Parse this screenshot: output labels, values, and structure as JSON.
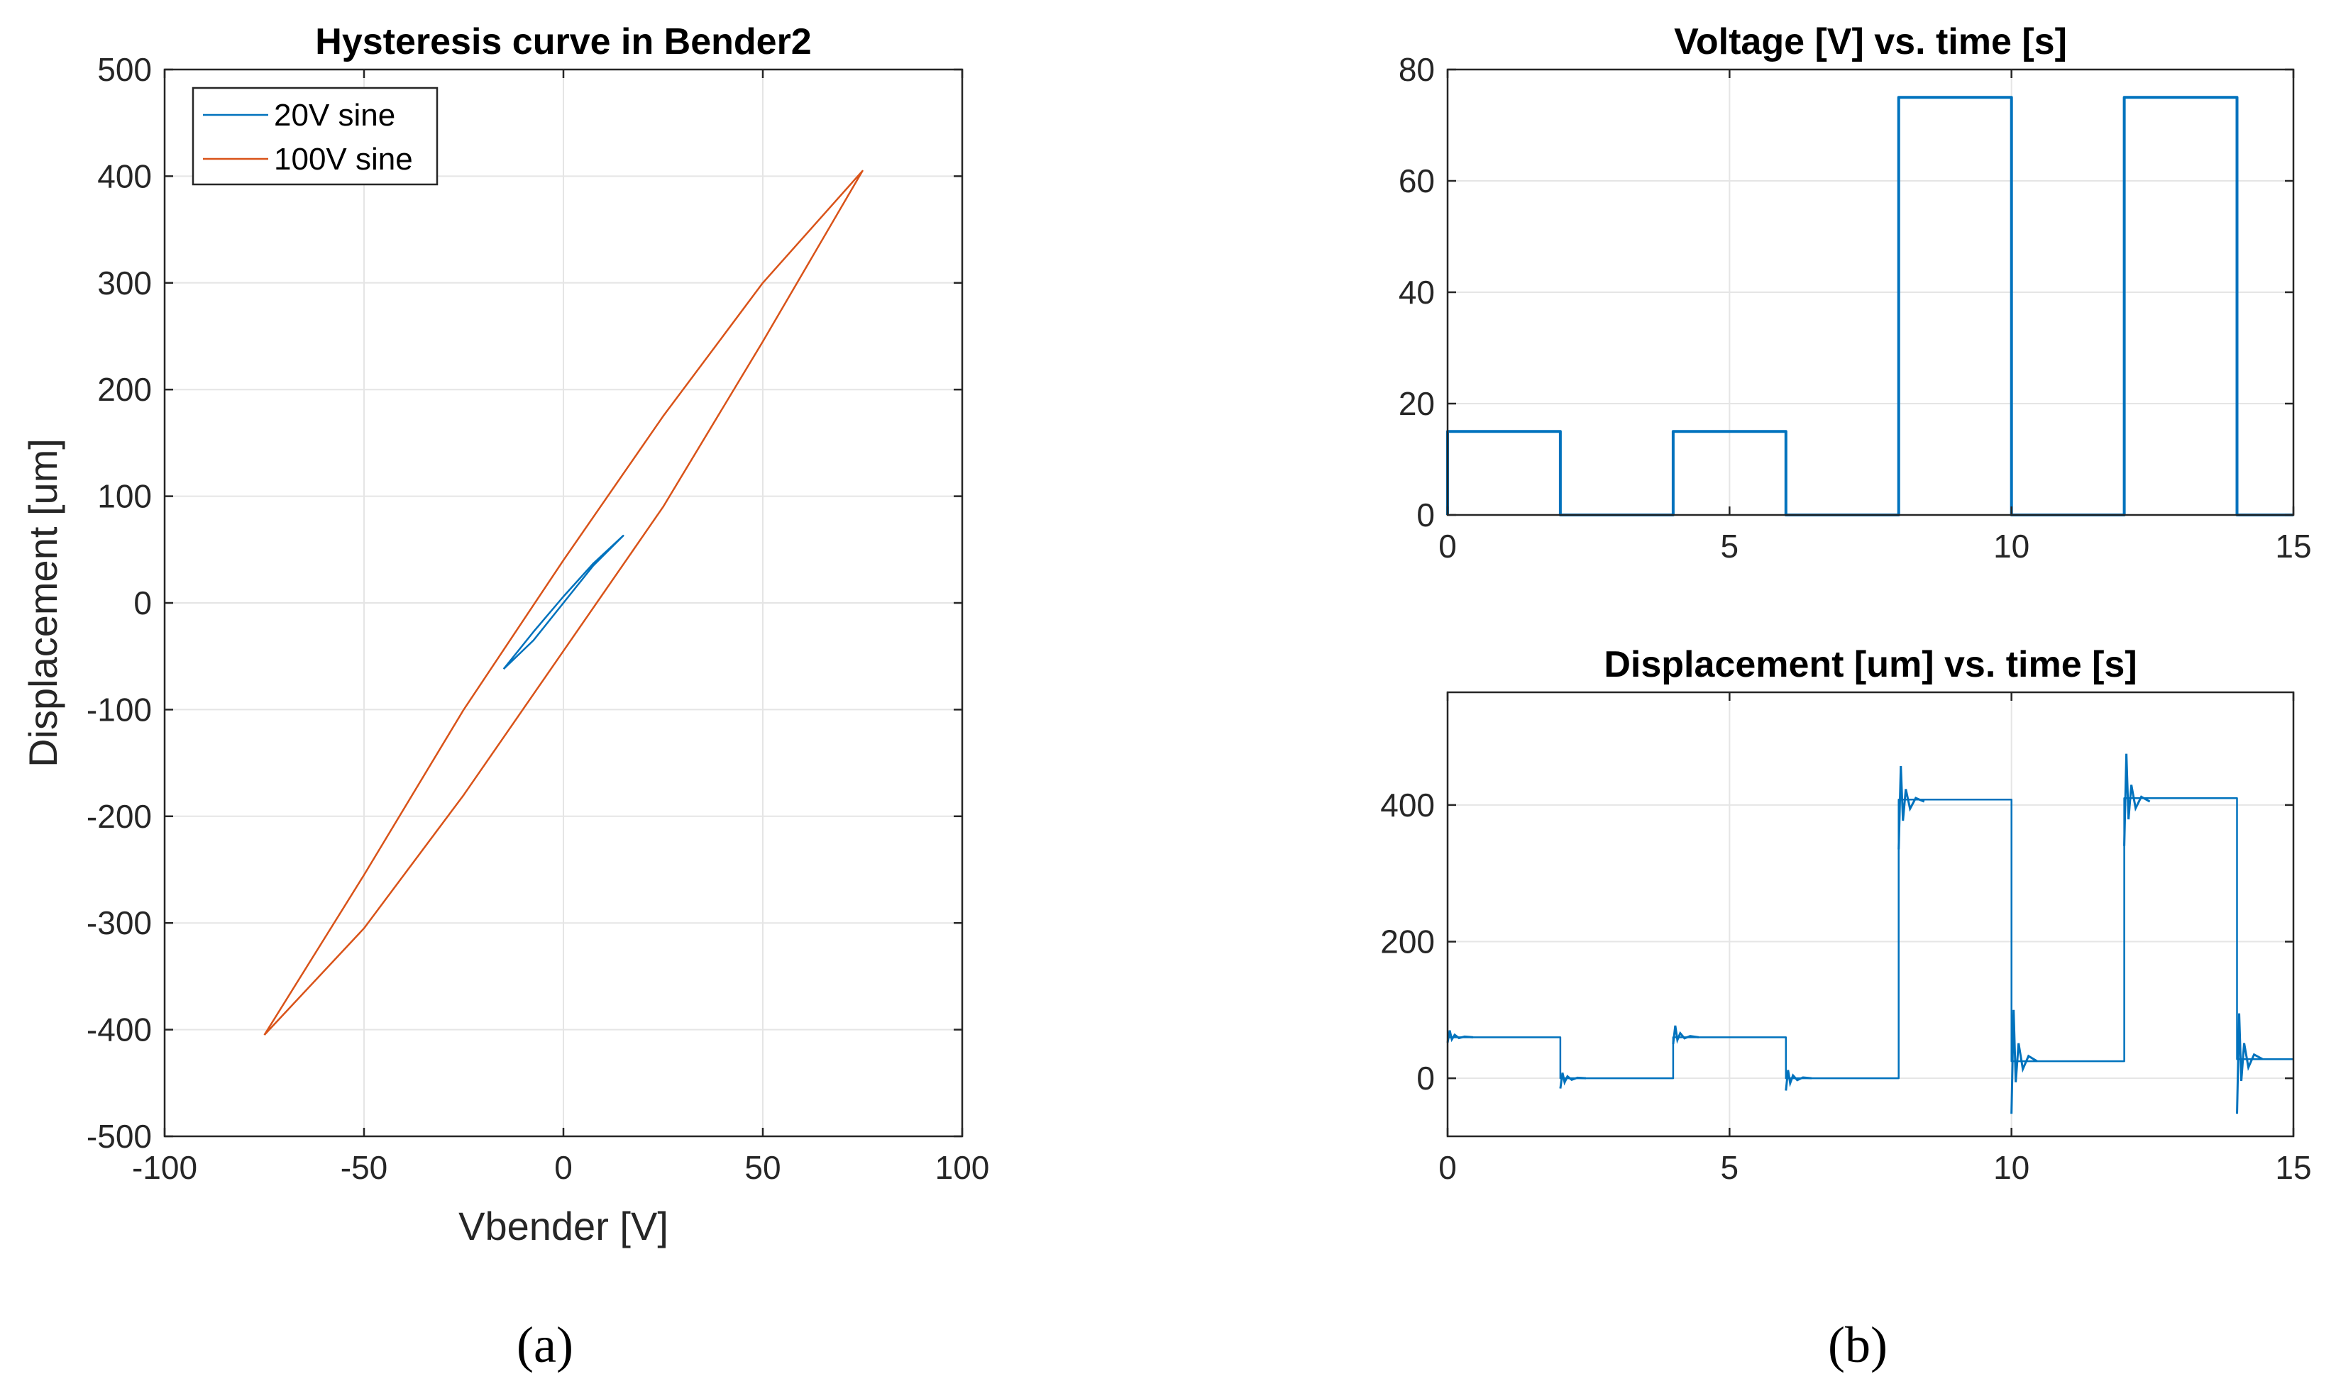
{
  "colors": {
    "blue": "#0072BD",
    "orange": "#D95319",
    "axis": "#262626",
    "grid": "#e5e5e5"
  },
  "panel_labels": {
    "a": "(a)",
    "b": "(b)"
  },
  "chart_data": [
    {
      "id": "hysteresis",
      "type": "line",
      "title": "Hysteresis curve in Bender2",
      "xlabel": "Vbender [V]",
      "ylabel": "Displacement [um]",
      "xlim": [
        -100,
        100
      ],
      "ylim": [
        -500,
        500
      ],
      "xticks": [
        -100,
        -50,
        0,
        50,
        100
      ],
      "yticks": [
        -500,
        -400,
        -300,
        -200,
        -100,
        0,
        100,
        200,
        300,
        400,
        500
      ],
      "xtick_labels": [
        "-100",
        "-50",
        "0",
        "50",
        "100"
      ],
      "ytick_labels": [
        "-500",
        "-400",
        "-300",
        "-200",
        "-100",
        "0",
        "100",
        "200",
        "300",
        "400",
        "500"
      ],
      "grid": true,
      "legend": "top-left",
      "series": [
        {
          "name": "20V sine",
          "color": "#0072BD",
          "x": [
            -15,
            -7.5,
            0,
            7.5,
            15,
            7.5,
            0,
            -7.5,
            -15
          ],
          "y": [
            -62,
            -35,
            0,
            35,
            63,
            37,
            6,
            -27,
            -62
          ]
        },
        {
          "name": "100V sine",
          "color": "#D95319",
          "x": [
            -75,
            -50,
            -25,
            0,
            25,
            50,
            75,
            50,
            25,
            0,
            -25,
            -50,
            -75
          ],
          "y": [
            -405,
            -255,
            -100,
            40,
            175,
            300,
            405,
            245,
            90,
            -45,
            -180,
            -305,
            -405
          ]
        }
      ]
    },
    {
      "id": "voltage",
      "type": "line",
      "title": "Voltage [V] vs. time [s]",
      "xlabel": "",
      "ylabel": "",
      "xlim": [
        0,
        15
      ],
      "ylim": [
        0,
        80
      ],
      "xticks": [
        0,
        5,
        10,
        15
      ],
      "yticks": [
        0,
        20,
        40,
        60,
        80
      ],
      "xtick_labels": [
        "0",
        "5",
        "10",
        "15"
      ],
      "ytick_labels": [
        "0",
        "20",
        "40",
        "60",
        "80"
      ],
      "grid": true,
      "series": [
        {
          "name": "Voltage",
          "color": "#0072BD",
          "x": [
            0,
            0,
            2,
            2,
            4,
            4,
            6,
            6,
            8,
            8,
            10,
            10,
            12,
            12,
            14,
            14,
            15
          ],
          "y": [
            0,
            15,
            15,
            0,
            0,
            15,
            15,
            0,
            0,
            75,
            75,
            0,
            0,
            75,
            75,
            0,
            0
          ]
        }
      ]
    },
    {
      "id": "displacement",
      "type": "line",
      "title": "Displacement [um] vs. time [s]",
      "xlabel": "",
      "ylabel": "",
      "xlim": [
        0,
        15
      ],
      "ylim": [
        -85,
        565
      ],
      "xticks": [
        0,
        5,
        10,
        15
      ],
      "yticks": [
        0,
        200,
        400
      ],
      "xtick_labels": [
        "0",
        "5",
        "10",
        "15"
      ],
      "ytick_labels": [
        "0",
        "200",
        "400"
      ],
      "grid": true,
      "series": [
        {
          "name": "Displacement",
          "color": "#0072BD",
          "x": [
            0,
            0,
            2,
            2,
            4,
            4,
            6,
            6,
            8,
            8,
            10,
            10,
            12,
            12,
            14,
            14,
            15
          ],
          "y": [
            60,
            60,
            60,
            0,
            0,
            60,
            60,
            0,
            0,
            408,
            408,
            25,
            25,
            410,
            410,
            28,
            28
          ]
        }
      ],
      "transients": [
        {
          "t": 0,
          "level": 60,
          "peak": 70,
          "trough": 52
        },
        {
          "t": 2,
          "level": 0,
          "peak": 8,
          "trough": -15
        },
        {
          "t": 4,
          "level": 60,
          "peak": 77,
          "trough": 50
        },
        {
          "t": 6,
          "level": 0,
          "peak": 12,
          "trough": -18
        },
        {
          "t": 8,
          "level": 405,
          "peak": 457,
          "trough": 335
        },
        {
          "t": 10,
          "level": 25,
          "peak": 100,
          "trough": -52
        },
        {
          "t": 12,
          "level": 405,
          "peak": 475,
          "trough": 340
        },
        {
          "t": 14,
          "level": 28,
          "peak": 95,
          "trough": -52
        }
      ]
    }
  ]
}
